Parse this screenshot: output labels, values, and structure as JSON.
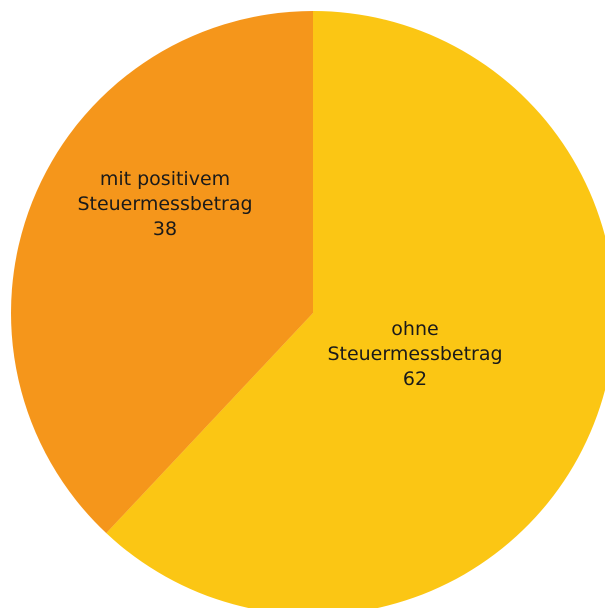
{
  "chart_data": {
    "type": "pie",
    "start_angle_deg": 0,
    "direction": "clockwise",
    "slices": [
      {
        "label_lines": [
          "ohne",
          "Steuermessbetrag"
        ],
        "value": 62,
        "value_label": "62",
        "color": "#FBC614"
      },
      {
        "label_lines": [
          "mit positivem",
          "Steuermessbetrag"
        ],
        "value": 38,
        "value_label": "38",
        "color": "#F5961B"
      }
    ]
  }
}
